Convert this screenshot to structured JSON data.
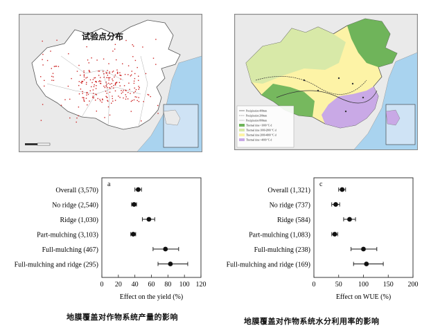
{
  "maps": {
    "left_title": "试验点分布",
    "right_legend": [
      "Precipitation 400mm",
      "Precipitation 200mm",
      "Precipitation 800mm",
      "Thermal time <1000 °C·d",
      "Thermal time 1000-2000 °C·d",
      "Thermal time 2000-4000 °C·d",
      "Thermal time >4000 °C·d"
    ],
    "colors": {
      "ocean": "#a9d3ef",
      "land_outside": "#eaeaea",
      "china_left": "#ffffff",
      "points": "#cc2222",
      "zone_cold": "#6fb45a",
      "zone_mid": "#d8e9a8",
      "zone_warm": "#fdf3a6",
      "zone_hot": "#c9a9e6"
    }
  },
  "chart_data": [
    {
      "type": "scatter",
      "panel_label": "a",
      "categories": [
        "Overall (3,570)",
        "No ridge (2,540)",
        "Ridge (1,030)",
        "Part-mulching (3,103)",
        "Full-mulching  (467)",
        "Full-mulching and ridge (295)"
      ],
      "values": [
        44,
        39,
        57,
        38,
        77,
        83
      ],
      "ci_low": [
        40,
        36,
        49,
        35,
        62,
        68
      ],
      "ci_high": [
        48,
        42,
        64,
        41,
        93,
        104
      ],
      "xlabel": "Effect on the yield (%)",
      "xlim": [
        0,
        120
      ],
      "xticks": [
        0,
        20,
        40,
        60,
        80,
        100,
        120
      ],
      "caption": "地膜覆盖对作物系统产量的影响"
    },
    {
      "type": "scatter",
      "panel_label": "c",
      "categories": [
        "Overall (1,321)",
        "No ridge (737)",
        "Ridge (584)",
        "Part-mulching (1,083)",
        "Full-mulching  (238)",
        "Full-mulching and ridge (169)"
      ],
      "values": [
        57,
        44,
        72,
        42,
        100,
        106
      ],
      "ci_low": [
        50,
        36,
        60,
        36,
        75,
        80
      ],
      "ci_high": [
        64,
        52,
        84,
        48,
        127,
        140
      ],
      "xlabel": "Effect on WUE (%)",
      "xlim": [
        0,
        200
      ],
      "xticks": [
        0,
        50,
        100,
        150,
        200
      ],
      "caption": "地膜覆盖对作物系统水分利用率的影响"
    }
  ]
}
